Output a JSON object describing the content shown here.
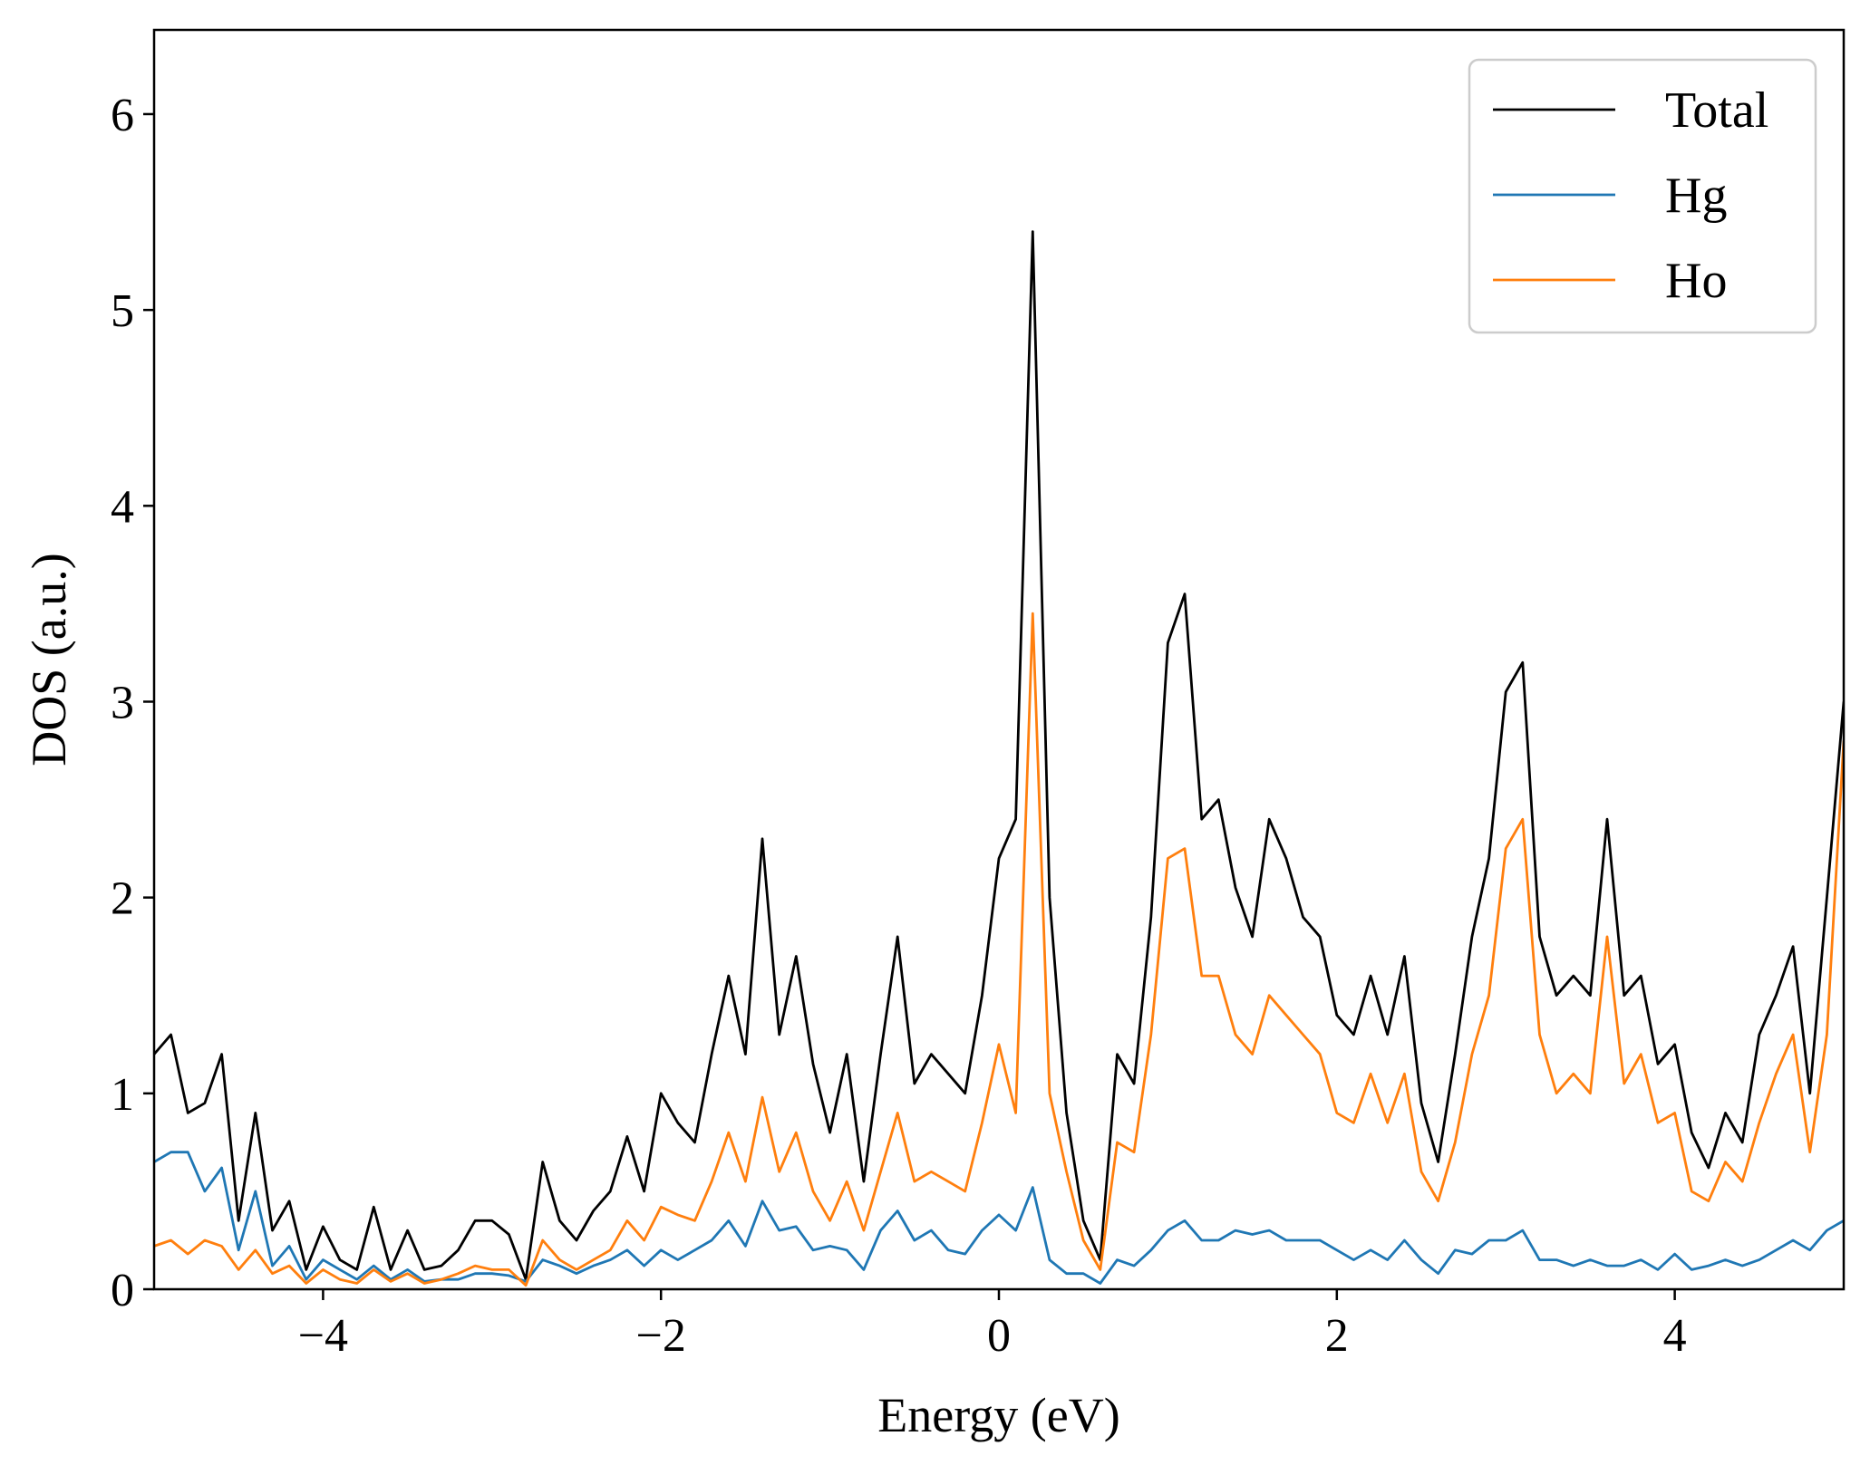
{
  "chart_data": {
    "type": "line",
    "xlabel": "Energy (eV)",
    "ylabel": "DOS (a.u.)",
    "xlim": [
      -5,
      5
    ],
    "ylim": [
      0,
      6.43
    ],
    "xticks": [
      {
        "value": -4,
        "label": "−4"
      },
      {
        "value": -2,
        "label": "−2"
      },
      0,
      2,
      4
    ],
    "yticks": [
      0,
      1,
      2,
      3,
      4,
      5,
      6
    ],
    "legend": "upper right",
    "x": [
      -5.0,
      -4.9,
      -4.8,
      -4.7,
      -4.6,
      -4.5,
      -4.4,
      -4.3,
      -4.2,
      -4.1,
      -4.0,
      -3.9,
      -3.8,
      -3.7,
      -3.6,
      -3.5,
      -3.4,
      -3.3,
      -3.2,
      -3.1,
      -3.0,
      -2.9,
      -2.8,
      -2.7,
      -2.6,
      -2.5,
      -2.4,
      -2.3,
      -2.2,
      -2.1,
      -2.0,
      -1.9,
      -1.8,
      -1.7,
      -1.6,
      -1.5,
      -1.4,
      -1.3,
      -1.2,
      -1.1,
      -1.0,
      -0.9,
      -0.8,
      -0.7,
      -0.6,
      -0.5,
      -0.4,
      -0.3,
      -0.2,
      -0.1,
      0.0,
      0.1,
      0.2,
      0.3,
      0.4,
      0.5,
      0.6,
      0.7,
      0.8,
      0.9,
      1.0,
      1.1,
      1.2,
      1.3,
      1.4,
      1.5,
      1.6,
      1.7,
      1.8,
      1.9,
      2.0,
      2.1,
      2.2,
      2.3,
      2.4,
      2.5,
      2.6,
      2.7,
      2.8,
      2.9,
      3.0,
      3.1,
      3.2,
      3.3,
      3.4,
      3.5,
      3.6,
      3.7,
      3.8,
      3.9,
      4.0,
      4.1,
      4.2,
      4.3,
      4.4,
      4.5,
      4.6,
      4.7,
      4.8,
      4.9,
      5.0
    ],
    "series": [
      {
        "name": "Total",
        "color": "#000000",
        "values": [
          1.2,
          1.3,
          0.9,
          0.95,
          1.2,
          0.35,
          0.9,
          0.3,
          0.45,
          0.1,
          0.32,
          0.15,
          0.1,
          0.42,
          0.1,
          0.3,
          0.1,
          0.12,
          0.2,
          0.35,
          0.35,
          0.28,
          0.05,
          0.65,
          0.35,
          0.25,
          0.4,
          0.5,
          0.78,
          0.5,
          1.0,
          0.85,
          0.75,
          1.2,
          1.6,
          1.2,
          2.3,
          1.3,
          1.7,
          1.15,
          0.8,
          1.2,
          0.55,
          1.2,
          1.8,
          1.05,
          1.2,
          1.1,
          1.0,
          1.5,
          2.2,
          2.4,
          5.4,
          2.0,
          0.9,
          0.35,
          0.15,
          1.2,
          1.05,
          1.9,
          3.3,
          3.55,
          2.4,
          2.5,
          2.05,
          1.8,
          2.4,
          2.2,
          1.9,
          1.8,
          1.4,
          1.3,
          1.6,
          1.3,
          1.7,
          0.95,
          0.65,
          1.2,
          1.8,
          2.2,
          3.05,
          3.2,
          1.8,
          1.5,
          1.6,
          1.5,
          2.4,
          1.5,
          1.6,
          1.15,
          1.25,
          0.8,
          0.62,
          0.9,
          0.75,
          1.3,
          1.5,
          1.75,
          1.0,
          2.0,
          3.0
        ]
      },
      {
        "name": "Hg",
        "color": "#1f77b4",
        "values": [
          0.65,
          0.7,
          0.7,
          0.5,
          0.62,
          0.2,
          0.5,
          0.12,
          0.22,
          0.05,
          0.15,
          0.1,
          0.05,
          0.12,
          0.05,
          0.1,
          0.04,
          0.05,
          0.05,
          0.08,
          0.08,
          0.07,
          0.04,
          0.15,
          0.12,
          0.08,
          0.12,
          0.15,
          0.2,
          0.12,
          0.2,
          0.15,
          0.2,
          0.25,
          0.35,
          0.22,
          0.45,
          0.3,
          0.32,
          0.2,
          0.22,
          0.2,
          0.1,
          0.3,
          0.4,
          0.25,
          0.3,
          0.2,
          0.18,
          0.3,
          0.38,
          0.3,
          0.52,
          0.15,
          0.08,
          0.08,
          0.03,
          0.15,
          0.12,
          0.2,
          0.3,
          0.35,
          0.25,
          0.25,
          0.3,
          0.28,
          0.3,
          0.25,
          0.25,
          0.25,
          0.2,
          0.15,
          0.2,
          0.15,
          0.25,
          0.15,
          0.08,
          0.2,
          0.18,
          0.25,
          0.25,
          0.3,
          0.15,
          0.15,
          0.12,
          0.15,
          0.12,
          0.12,
          0.15,
          0.1,
          0.18,
          0.1,
          0.12,
          0.15,
          0.12,
          0.15,
          0.2,
          0.25,
          0.2,
          0.3,
          0.35
        ]
      },
      {
        "name": "Ho",
        "color": "#ff7f0e",
        "values": [
          0.22,
          0.25,
          0.18,
          0.25,
          0.22,
          0.1,
          0.2,
          0.08,
          0.12,
          0.03,
          0.1,
          0.05,
          0.03,
          0.1,
          0.04,
          0.08,
          0.03,
          0.05,
          0.08,
          0.12,
          0.1,
          0.1,
          0.02,
          0.25,
          0.15,
          0.1,
          0.15,
          0.2,
          0.35,
          0.25,
          0.42,
          0.38,
          0.35,
          0.55,
          0.8,
          0.55,
          0.98,
          0.6,
          0.8,
          0.5,
          0.35,
          0.55,
          0.3,
          0.6,
          0.9,
          0.55,
          0.6,
          0.55,
          0.5,
          0.85,
          1.25,
          0.9,
          3.45,
          1.0,
          0.6,
          0.25,
          0.1,
          0.75,
          0.7,
          1.3,
          2.2,
          2.25,
          1.6,
          1.6,
          1.3,
          1.2,
          1.5,
          1.4,
          1.3,
          1.2,
          0.9,
          0.85,
          1.1,
          0.85,
          1.1,
          0.6,
          0.45,
          0.75,
          1.2,
          1.5,
          2.25,
          2.4,
          1.3,
          1.0,
          1.1,
          1.0,
          1.8,
          1.05,
          1.2,
          0.85,
          0.9,
          0.5,
          0.45,
          0.65,
          0.55,
          0.85,
          1.1,
          1.3,
          0.7,
          1.3,
          2.8
        ]
      }
    ]
  }
}
